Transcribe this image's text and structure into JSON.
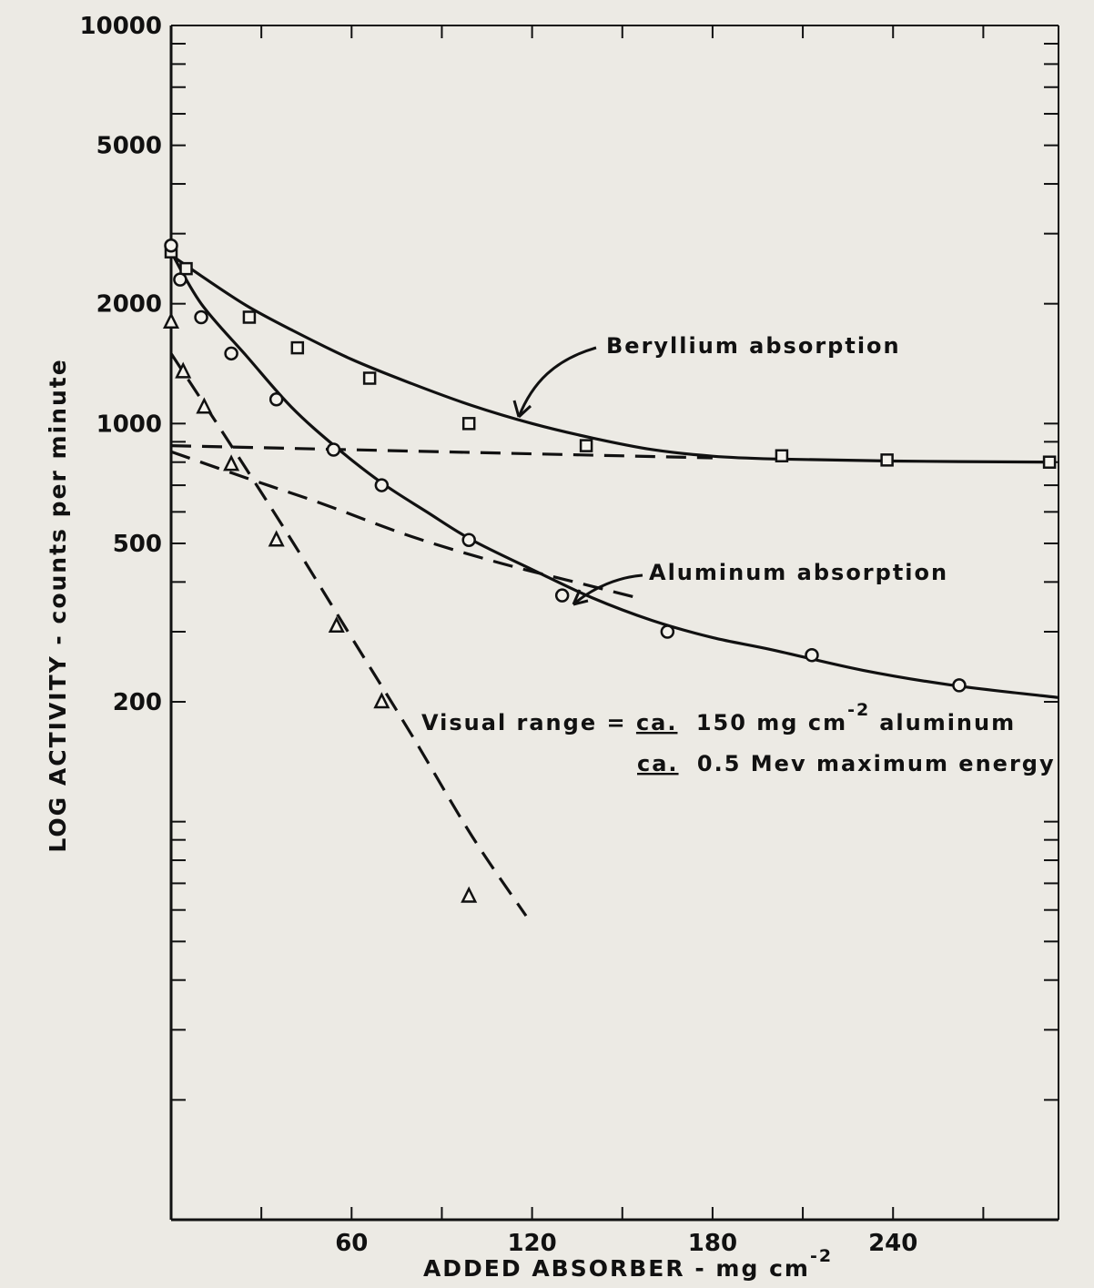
{
  "chart_data": {
    "type": "scatter",
    "title": "",
    "xlabel": "ADDED ABSORBER - mg cm",
    "xlabel_sup": "-2",
    "ylabel": "LOG ACTIVITY - counts per minute",
    "xscale": "linear",
    "yscale": "log",
    "xlim": [
      0,
      295
    ],
    "ylim": [
      10,
      10000
    ],
    "x_ticks": [
      60,
      120,
      180,
      240
    ],
    "x_tick_labels": [
      "60",
      "120",
      "180",
      "240"
    ],
    "y_ticks": [
      200,
      500,
      1000,
      2000,
      5000,
      10000
    ],
    "y_tick_labels": [
      "200",
      "500",
      "1000",
      "2000",
      "5000",
      "10000"
    ],
    "grid": false,
    "series": [
      {
        "name": "Beryllium absorption",
        "marker": "square",
        "line": "solid",
        "points": [
          [
            0,
            2700
          ],
          [
            5,
            2450
          ],
          [
            26,
            1850
          ],
          [
            42,
            1550
          ],
          [
            66,
            1300
          ],
          [
            99,
            1000
          ],
          [
            138,
            880
          ],
          [
            203,
            830
          ],
          [
            238,
            810
          ],
          [
            292,
            800
          ]
        ],
        "curve": [
          [
            0,
            2650
          ],
          [
            10,
            2350
          ],
          [
            25,
            1980
          ],
          [
            40,
            1720
          ],
          [
            60,
            1450
          ],
          [
            80,
            1260
          ],
          [
            100,
            1110
          ],
          [
            120,
            1000
          ],
          [
            140,
            920
          ],
          [
            160,
            860
          ],
          [
            180,
            828
          ],
          [
            200,
            815
          ],
          [
            240,
            805
          ],
          [
            292,
            800
          ]
        ]
      },
      {
        "name": "Aluminum absorption",
        "marker": "circle",
        "line": "solid",
        "points": [
          [
            0,
            2800
          ],
          [
            3,
            2300
          ],
          [
            10,
            1850
          ],
          [
            20,
            1500
          ],
          [
            35,
            1150
          ],
          [
            54,
            860
          ],
          [
            70,
            700
          ],
          [
            99,
            510
          ],
          [
            130,
            370
          ],
          [
            165,
            300
          ],
          [
            213,
            262
          ],
          [
            262,
            220
          ]
        ],
        "curve": [
          [
            0,
            2700
          ],
          [
            10,
            2000
          ],
          [
            25,
            1480
          ],
          [
            40,
            1100
          ],
          [
            55,
            870
          ],
          [
            70,
            710
          ],
          [
            85,
            600
          ],
          [
            100,
            510
          ],
          [
            120,
            430
          ],
          [
            140,
            365
          ],
          [
            160,
            320
          ],
          [
            180,
            290
          ],
          [
            200,
            270
          ],
          [
            230,
            240
          ],
          [
            260,
            220
          ],
          [
            295,
            205
          ]
        ]
      },
      {
        "name": "",
        "marker": "triangle",
        "line": "dashed",
        "points": [
          [
            0,
            1800
          ],
          [
            4,
            1350
          ],
          [
            11,
            1100
          ],
          [
            20,
            790
          ],
          [
            35,
            510
          ],
          [
            55,
            310
          ],
          [
            70,
            200
          ],
          [
            99,
            65
          ]
        ],
        "curve": [
          [
            0,
            1500
          ],
          [
            20,
            880
          ],
          [
            40,
            510
          ],
          [
            60,
            290
          ],
          [
            80,
            165
          ],
          [
            100,
            92
          ],
          [
            118,
            58
          ]
        ]
      },
      {
        "name": "",
        "marker": "none",
        "line": "dashed",
        "points": [],
        "curve": [
          [
            0,
            880
          ],
          [
            180,
            820
          ]
        ]
      },
      {
        "name": "",
        "marker": "none",
        "line": "dashed",
        "points": [],
        "curve": [
          [
            0,
            850
          ],
          [
            25,
            730
          ],
          [
            50,
            630
          ],
          [
            80,
            520
          ],
          [
            110,
            445
          ],
          [
            140,
            390
          ],
          [
            155,
            365
          ]
        ]
      }
    ],
    "annotations": {
      "beryllium_label": "Beryllium absorption",
      "aluminum_label": "Aluminum absorption",
      "range_prefix": "Visual range =",
      "range_ca1": "ca.",
      "range_line1": "150 mg cm",
      "range_sup": "-2",
      "range_line1_end": "aluminum",
      "range_ca2": "ca.",
      "range_line2": "0.5 Mev maximum energy"
    }
  }
}
